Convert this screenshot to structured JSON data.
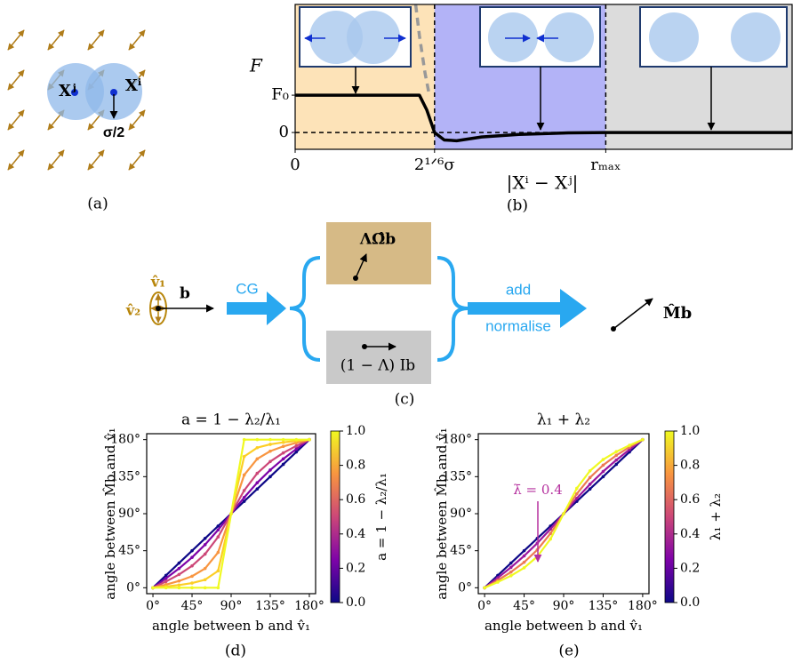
{
  "panel_labels": [
    "(a)",
    "(b)",
    "(c)",
    "(d)",
    "(e)"
  ],
  "panel_a": {
    "labels": [
      "Xʲ",
      "Xⁱ",
      "σ/2"
    ]
  },
  "panel_c": {
    "v1": "v̂₁",
    "v2": "v̂₂",
    "b": "b",
    "cg": "CG",
    "top_box": "ΛΩ̂b",
    "bottom_box": "(1 − Λ) Ib",
    "add": "add",
    "normalise": "normalise",
    "result": "M̂b"
  },
  "chart_data": [
    {
      "type": "line",
      "y_label": "F",
      "x_label": "|Xⁱ − Xʲ|",
      "xlim": [
        0,
        4
      ],
      "ylim": [
        -0.45,
        3.43
      ],
      "xticks": [
        0,
        {
          "value": 1.122,
          "label": "2¹ᐟ⁶σ"
        },
        {
          "value": 2.5,
          "label": "rₘₐₓ"
        }
      ],
      "yticks": [
        0,
        {
          "value": 1,
          "label": "F₀"
        }
      ],
      "region_colors": [
        "#fde3b8",
        "#b3b3f7",
        "#dcdcdc"
      ],
      "zero_line": true,
      "series": [
        {
          "color": "#000000",
          "x": [
            0,
            1.0,
            1.06,
            1.122,
            1.2,
            1.3,
            1.5,
            1.8,
            2.2,
            2.5,
            4
          ],
          "values": [
            1,
            1,
            0.6,
            0,
            -0.2,
            -0.22,
            -0.12,
            -0.05,
            -0.01,
            0,
            0
          ]
        },
        {
          "color": "#999999",
          "dashed": true,
          "x": [
            0.97,
            1.0,
            1.045,
            1.08
          ],
          "values": [
            3.43,
            2.6,
            1.6,
            1.0
          ]
        }
      ]
    },
    {
      "type": "line",
      "title": "a = 1 − λ₂/λ₁",
      "x_label": "angle between b and v̂₁",
      "y_label": "angle between M̂b and v̂₁",
      "colorbar_label": "a = 1 − λ₂/λ₁",
      "xlim": [
        -7.2,
        187.2
      ],
      "ylim": [
        -7.2,
        187.2
      ],
      "xticks": [
        {
          "value": 0,
          "label": "0°"
        },
        {
          "value": 45,
          "label": "45°"
        },
        {
          "value": 90,
          "label": "90°"
        },
        {
          "value": 135,
          "label": "135°"
        },
        {
          "value": 180,
          "label": "180°"
        }
      ],
      "yticks": [
        {
          "value": 0,
          "label": "0°"
        },
        {
          "value": 45,
          "label": "45°"
        },
        {
          "value": 90,
          "label": "90°"
        },
        {
          "value": 135,
          "label": "135°"
        },
        {
          "value": 180,
          "label": "180°"
        }
      ],
      "clim": [
        0,
        1
      ],
      "cticks": [
        {
          "value": 0,
          "label": "0.0"
        },
        {
          "value": 0.2,
          "label": "0.2"
        },
        {
          "value": 0.4,
          "label": "0.4"
        },
        {
          "value": 0.6,
          "label": "0.6"
        },
        {
          "value": 0.8,
          "label": "0.8"
        },
        {
          "value": 1,
          "label": "1.0"
        }
      ],
      "colormap": [
        "#0d0887",
        "#7e03a8",
        "#cc4778",
        "#f89540",
        "#f0f921"
      ],
      "x": [
        0,
        15,
        30,
        45,
        60,
        75,
        90,
        105,
        120,
        135,
        150,
        165,
        180
      ],
      "series": [
        {
          "color": "#0d0887",
          "values": [
            0,
            15,
            30,
            45,
            60,
            75,
            90,
            105,
            120,
            135,
            150,
            165,
            180
          ]
        },
        {
          "color": "#7e03a8",
          "values": [
            0,
            11.4,
            23.4,
            36.9,
            52.4,
            70.3,
            90,
            109.7,
            127.6,
            143.1,
            156.6,
            168.6,
            180
          ]
        },
        {
          "color": "#cc4778",
          "values": [
            0,
            7.6,
            16.1,
            26.6,
            40.9,
            61.8,
            90,
            118.2,
            139.1,
            153.4,
            163.9,
            172.4,
            180
          ]
        },
        {
          "color": "#f89540",
          "values": [
            0,
            3.8,
            8.2,
            14.0,
            23.4,
            43.0,
            90,
            137.0,
            156.6,
            166.0,
            171.8,
            176.2,
            180
          ]
        },
        {
          "color": "#fcce25",
          "values": [
            0,
            1.5,
            3.3,
            5.7,
            9.8,
            20.5,
            90,
            159.5,
            170.2,
            174.3,
            176.7,
            178.5,
            180
          ]
        },
        {
          "color": "#f0f921",
          "values": [
            0,
            0,
            0,
            0,
            0,
            0,
            90,
            180,
            180,
            180,
            180,
            180,
            180
          ]
        }
      ]
    },
    {
      "type": "line",
      "title": "λ₁ + λ₂",
      "x_label": "angle between b and v̂₁",
      "y_label": "angle between M̂b and v̂₁",
      "colorbar_label": "λ₁ + λ₂",
      "annotation": "λ̄ = 0.4",
      "annotation_color": "#b5309e",
      "xlim": [
        -7.2,
        187.2
      ],
      "ylim": [
        -7.2,
        187.2
      ],
      "xticks": [
        {
          "value": 0,
          "label": "0°"
        },
        {
          "value": 45,
          "label": "45°"
        },
        {
          "value": 90,
          "label": "90°"
        },
        {
          "value": 135,
          "label": "135°"
        },
        {
          "value": 180,
          "label": "180°"
        }
      ],
      "yticks": [
        {
          "value": 0,
          "label": "0°"
        },
        {
          "value": 45,
          "label": "45°"
        },
        {
          "value": 90,
          "label": "90°"
        },
        {
          "value": 135,
          "label": "135°"
        },
        {
          "value": 180,
          "label": "180°"
        }
      ],
      "clim": [
        0,
        1
      ],
      "cticks": [
        {
          "value": 0,
          "label": "0.0"
        },
        {
          "value": 0.2,
          "label": "0.2"
        },
        {
          "value": 0.4,
          "label": "0.4"
        },
        {
          "value": 0.6,
          "label": "0.6"
        },
        {
          "value": 0.8,
          "label": "0.8"
        },
        {
          "value": 1,
          "label": "1.0"
        }
      ],
      "colormap": [
        "#0d0887",
        "#7e03a8",
        "#cc4778",
        "#f89540",
        "#f0f921"
      ],
      "x": [
        0,
        15,
        30,
        45,
        60,
        75,
        90,
        105,
        120,
        135,
        150,
        165,
        180
      ],
      "series": [
        {
          "color": "#0d0887",
          "values": [
            0,
            15,
            30,
            45,
            60,
            75,
            90,
            105,
            120,
            135,
            150,
            165,
            180
          ]
        },
        {
          "color": "#9c179e",
          "values": [
            0,
            12.1,
            24.8,
            38.7,
            54.2,
            71.4,
            90,
            108.6,
            125.8,
            141.3,
            155.2,
            167.9,
            180
          ]
        },
        {
          "color": "#ed7953",
          "values": [
            0,
            9.1,
            19.1,
            31.0,
            46.1,
            65.9,
            90,
            114.1,
            133.9,
            149.0,
            160.9,
            170.9,
            180
          ]
        },
        {
          "color": "#f0f921",
          "values": [
            0,
            6.9,
            14.6,
            24.2,
            37.9,
            59.2,
            90,
            120.8,
            142.1,
            155.8,
            165.4,
            173.1,
            180
          ]
        }
      ]
    }
  ]
}
